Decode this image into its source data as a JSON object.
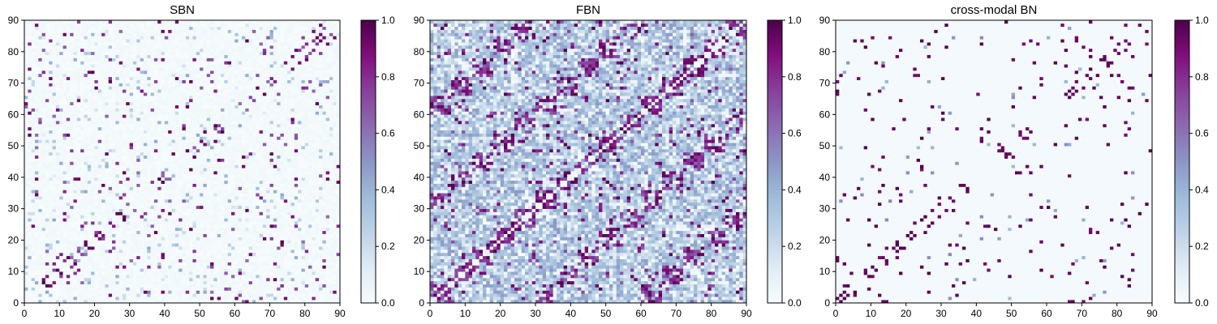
{
  "figure": {
    "panels": [
      {
        "title": "SBN",
        "type": "sparse-structural"
      },
      {
        "title": "FBN",
        "type": "dense-functional"
      },
      {
        "title": "cross-modal BN",
        "type": "sparse-binary"
      }
    ],
    "colorbar_ticks": [
      "0.0",
      "0.2",
      "0.4",
      "0.6",
      "0.8",
      "1.0"
    ],
    "colormap": {
      "name": "BuPu",
      "low": "#f7fcfd",
      "mid1": "#bfd3e6",
      "mid2": "#8c96c6",
      "mid3": "#8c6bb1",
      "high": "#4d004b"
    }
  },
  "chart_data": [
    {
      "type": "heatmap",
      "title": "SBN",
      "xlabel": "",
      "ylabel": "",
      "xlim": [
        0,
        90
      ],
      "ylim": [
        0,
        90
      ],
      "x_ticks": [
        "0",
        "10",
        "20",
        "30",
        "40",
        "50",
        "60",
        "70",
        "80",
        "90"
      ],
      "y_ticks": [
        "0",
        "10",
        "20",
        "30",
        "40",
        "50",
        "60",
        "70",
        "80",
        "90"
      ],
      "grid_size": 90,
      "value_range": [
        0,
        1
      ],
      "description": "Sparse symmetric connectivity matrix; mostly near-zero with scattered high values (purple) along and off the diagonal"
    },
    {
      "type": "heatmap",
      "title": "FBN",
      "xlabel": "",
      "ylabel": "",
      "xlim": [
        0,
        90
      ],
      "ylim": [
        0,
        90
      ],
      "x_ticks": [
        "0",
        "10",
        "20",
        "30",
        "40",
        "50",
        "60",
        "70",
        "80",
        "90"
      ],
      "y_ticks": [
        "0",
        "10",
        "20",
        "30",
        "40",
        "50",
        "60",
        "70",
        "80",
        "90"
      ],
      "grid_size": 90,
      "value_range": [
        0,
        1
      ],
      "description": "Dense symmetric connectivity matrix with moderate blue values throughout and strong purple blocks near the diagonal"
    },
    {
      "type": "heatmap",
      "title": "cross-modal BN",
      "xlabel": "",
      "ylabel": "",
      "xlim": [
        0,
        90
      ],
      "ylim": [
        0,
        90
      ],
      "x_ticks": [
        "0",
        "10",
        "20",
        "30",
        "40",
        "50",
        "60",
        "70",
        "80",
        "90"
      ],
      "y_ticks": [
        "0",
        "10",
        "20",
        "30",
        "40",
        "50",
        "60",
        "70",
        "80",
        "90"
      ],
      "grid_size": 90,
      "value_range": [
        0,
        1
      ],
      "description": "Very sparse, mostly binary symmetric matrix; scattered dark purple cells, otherwise near zero"
    }
  ]
}
